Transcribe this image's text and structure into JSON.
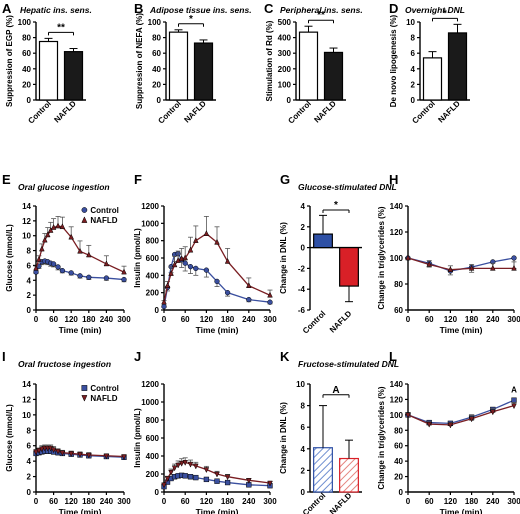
{
  "colors": {
    "axis": "#000000",
    "blue": "#3a4f9f",
    "red": "#7a1e22",
    "bar_red": "#d92027",
    "bar_blue": "#2e50a5",
    "hatch_blue": "#6f8fd0",
    "hatch_red": "#e4847e",
    "grey": "#555555"
  },
  "chart_data": [
    {
      "id": "A",
      "type": "bar",
      "letter": "A",
      "title": "Hepatic ins. sens.",
      "ylabel": "Suppression of EGP (%)",
      "ylim": [
        0,
        100
      ],
      "yticks": [
        0,
        20,
        40,
        60,
        80,
        100
      ],
      "categories": [
        "Control",
        "NAFLD"
      ],
      "values": [
        75,
        62
      ],
      "errors": [
        4,
        4
      ],
      "significance": "**",
      "bar_style": "bw"
    },
    {
      "id": "B",
      "type": "bar",
      "letter": "B",
      "title": "Adipose tissue ins. sens.",
      "ylabel": "Suppression of NEFA (%)",
      "ylim": [
        0,
        100
      ],
      "yticks": [
        0,
        20,
        40,
        60,
        80,
        100
      ],
      "categories": [
        "Control",
        "NAFLD"
      ],
      "values": [
        87,
        73
      ],
      "errors": [
        3,
        4
      ],
      "significance": "*",
      "bar_style": "bw"
    },
    {
      "id": "C",
      "type": "bar",
      "letter": "C",
      "title": "Peripheral ins. sens.",
      "ylabel": "Stimulation of Rd (%)",
      "ylim": [
        0,
        500
      ],
      "yticks": [
        0,
        100,
        200,
        300,
        400,
        500
      ],
      "categories": [
        "Control",
        "NAFLD"
      ],
      "values": [
        435,
        305
      ],
      "errors": [
        38,
        28
      ],
      "significance": "**",
      "bar_style": "bw"
    },
    {
      "id": "D",
      "type": "bar",
      "letter": "D",
      "title": "Overnight DNL",
      "ylabel": "De novo lipogenesis (%)",
      "ylim": [
        0,
        10
      ],
      "yticks": [
        0,
        2,
        4,
        6,
        8,
        10
      ],
      "categories": [
        "Control",
        "NAFLD"
      ],
      "values": [
        5.4,
        8.6
      ],
      "errors": [
        0.8,
        1.1
      ],
      "significance": "*",
      "bar_style": "bw"
    },
    {
      "id": "E",
      "type": "line",
      "letter": "E",
      "title": "Oral glucose ingestion",
      "xlabel": "Time (min)",
      "ylabel": "Glucose (mmol/L)",
      "xlim": [
        0,
        300
      ],
      "xticks": [
        0,
        60,
        120,
        180,
        240,
        300
      ],
      "ylim": [
        0,
        14
      ],
      "yticks": [
        0,
        2,
        4,
        6,
        8,
        10,
        12,
        14
      ],
      "legend": {
        "labels": [
          "Control",
          "NAFLD"
        ]
      },
      "series": [
        {
          "name": "Control",
          "marker": "circle",
          "color": "blue",
          "x": [
            0,
            10,
            20,
            30,
            40,
            50,
            60,
            75,
            90,
            120,
            150,
            180,
            240,
            300
          ],
          "y": [
            5.1,
            5.9,
            6.5,
            6.6,
            6.5,
            6.3,
            6.2,
            5.8,
            5.3,
            5.0,
            4.6,
            4.4,
            4.3,
            4.1
          ],
          "err": [
            0.2,
            0.3,
            0.4,
            0.4,
            0.4,
            0.4,
            0.4,
            0.4,
            0.3,
            0.3,
            0.3,
            0.3,
            0.3,
            0.3
          ]
        },
        {
          "name": "NAFLD",
          "marker": "triangle",
          "color": "red",
          "x": [
            0,
            10,
            20,
            30,
            40,
            50,
            60,
            75,
            90,
            120,
            150,
            180,
            240,
            300
          ],
          "y": [
            5.6,
            6.8,
            8.2,
            9.4,
            10.1,
            10.7,
            11.1,
            11.3,
            11.2,
            9.8,
            7.9,
            7.4,
            6.2,
            5.1
          ],
          "err": [
            0.3,
            0.5,
            0.7,
            0.9,
            1.0,
            1.1,
            1.2,
            1.3,
            1.3,
            1.4,
            1.4,
            1.3,
            1.1,
            0.8
          ]
        }
      ]
    },
    {
      "id": "F",
      "type": "line",
      "letter": "F",
      "xlabel": "Time (min)",
      "ylabel": "Insulin (pmol/L)",
      "xlim": [
        0,
        300
      ],
      "xticks": [
        0,
        60,
        120,
        180,
        240,
        300
      ],
      "ylim": [
        0,
        1200
      ],
      "yticks": [
        0,
        200,
        400,
        600,
        800,
        1000,
        1200
      ],
      "series": [
        {
          "name": "Control",
          "marker": "circle",
          "color": "blue",
          "x": [
            0,
            10,
            20,
            30,
            40,
            50,
            60,
            75,
            90,
            120,
            150,
            180,
            240,
            300
          ],
          "y": [
            40,
            260,
            500,
            640,
            650,
            580,
            540,
            500,
            480,
            460,
            330,
            200,
            120,
            90
          ],
          "err": [
            10,
            40,
            70,
            80,
            90,
            90,
            90,
            80,
            80,
            80,
            60,
            40,
            25,
            20
          ]
        },
        {
          "name": "NAFLD",
          "marker": "triangle",
          "color": "red",
          "x": [
            0,
            10,
            20,
            30,
            40,
            50,
            60,
            75,
            90,
            120,
            150,
            180,
            240,
            300
          ],
          "y": [
            90,
            280,
            420,
            520,
            570,
            590,
            600,
            690,
            800,
            880,
            780,
            560,
            280,
            170
          ],
          "err": [
            20,
            50,
            80,
            100,
            110,
            120,
            130,
            150,
            170,
            200,
            180,
            150,
            90,
            60
          ]
        }
      ]
    },
    {
      "id": "G",
      "type": "bar",
      "letter": "G",
      "title": "Glucose-stimulated DNL",
      "ylabel": "Change in DNL (%)",
      "ylim": [
        -6,
        4
      ],
      "yticks": [
        -6,
        -4,
        -2,
        0,
        2,
        4
      ],
      "categories": [
        "Control",
        "NAFLD"
      ],
      "values": [
        1.3,
        -3.7
      ],
      "errors": [
        1.8,
        1.5
      ],
      "significance": "*",
      "bar_style": "color"
    },
    {
      "id": "H",
      "type": "line",
      "letter": "H",
      "xlabel": "Time (min)",
      "ylabel": "Change in triglycerides (%)",
      "xlim": [
        0,
        300
      ],
      "xticks": [
        0,
        60,
        120,
        180,
        240,
        300
      ],
      "ylim": [
        60,
        140
      ],
      "yticks": [
        60,
        80,
        100,
        120,
        140
      ],
      "series": [
        {
          "name": "Control",
          "marker": "circle",
          "color": "blue",
          "x": [
            0,
            60,
            120,
            180,
            240,
            300
          ],
          "y": [
            100,
            96,
            90,
            93,
            97,
            100
          ],
          "err": [
            0,
            3,
            3,
            4,
            5,
            8
          ]
        },
        {
          "name": "NAFLD",
          "marker": "triangle",
          "color": "red",
          "x": [
            0,
            60,
            120,
            180,
            240,
            300
          ],
          "y": [
            100,
            95,
            91,
            92,
            92,
            92
          ],
          "err": [
            0,
            3,
            3,
            3,
            4,
            5
          ]
        }
      ]
    },
    {
      "id": "I",
      "type": "line",
      "letter": "I",
      "title": "Oral fructose ingestion",
      "xlabel": "Time (min)",
      "ylabel": "Glucose (mmol/L)",
      "xlim": [
        0,
        300
      ],
      "xticks": [
        0,
        60,
        120,
        180,
        240,
        300
      ],
      "ylim": [
        0,
        14
      ],
      "yticks": [
        0,
        2,
        4,
        6,
        8,
        10,
        12,
        14
      ],
      "legend": {
        "labels": [
          "Control",
          "NAFLD"
        ]
      },
      "series": [
        {
          "name": "Control",
          "marker": "square",
          "color": "blue",
          "x": [
            0,
            10,
            20,
            30,
            40,
            50,
            60,
            75,
            90,
            120,
            150,
            180,
            240,
            300
          ],
          "y": [
            5.0,
            5.1,
            5.2,
            5.3,
            5.3,
            5.3,
            5.2,
            5.1,
            5.0,
            4.9,
            4.8,
            4.7,
            4.6,
            4.5
          ],
          "err": [
            0.2,
            0.2,
            0.2,
            0.3,
            0.3,
            0.3,
            0.3,
            0.3,
            0.2,
            0.2,
            0.2,
            0.2,
            0.2,
            0.2
          ]
        },
        {
          "name": "NAFLD",
          "marker": "triangle-down",
          "color": "red",
          "x": [
            0,
            10,
            20,
            30,
            40,
            50,
            60,
            75,
            90,
            120,
            150,
            180,
            240,
            300
          ],
          "y": [
            5.2,
            5.4,
            5.6,
            5.7,
            5.7,
            5.7,
            5.5,
            5.3,
            5.1,
            5.0,
            4.9,
            4.8,
            4.7,
            4.6
          ],
          "err": [
            0.3,
            0.3,
            0.4,
            0.4,
            0.4,
            0.4,
            0.4,
            0.3,
            0.3,
            0.3,
            0.3,
            0.3,
            0.2,
            0.2
          ]
        }
      ]
    },
    {
      "id": "J",
      "type": "line",
      "letter": "J",
      "xlabel": "Time (min)",
      "ylabel": "Insulin (pmol/L)",
      "xlim": [
        0,
        300
      ],
      "xticks": [
        0,
        60,
        120,
        180,
        240,
        300
      ],
      "ylim": [
        0,
        1200
      ],
      "yticks": [
        0,
        200,
        400,
        600,
        800,
        1000,
        1200
      ],
      "series": [
        {
          "name": "Control",
          "marker": "square",
          "color": "blue",
          "x": [
            0,
            10,
            20,
            30,
            40,
            50,
            60,
            75,
            90,
            120,
            150,
            180,
            240,
            300
          ],
          "y": [
            60,
            110,
            150,
            170,
            180,
            185,
            180,
            170,
            160,
            140,
            120,
            105,
            80,
            70
          ],
          "err": [
            10,
            15,
            20,
            25,
            25,
            25,
            25,
            25,
            20,
            20,
            15,
            15,
            10,
            10
          ]
        },
        {
          "name": "NAFLD",
          "marker": "triangle-down",
          "color": "red",
          "x": [
            0,
            10,
            20,
            30,
            40,
            50,
            60,
            75,
            90,
            120,
            150,
            180,
            240,
            300
          ],
          "y": [
            80,
            150,
            220,
            270,
            300,
            320,
            330,
            310,
            290,
            250,
            200,
            170,
            130,
            100
          ],
          "err": [
            15,
            25,
            35,
            40,
            45,
            50,
            50,
            45,
            40,
            35,
            30,
            25,
            20,
            15
          ]
        }
      ]
    },
    {
      "id": "K",
      "type": "bar",
      "letter": "K",
      "title": "Fructose-stimulated DNL",
      "ylabel": "Change in DNL (%)",
      "ylim": [
        0,
        10
      ],
      "yticks": [
        0,
        2,
        4,
        6,
        8,
        10
      ],
      "categories": [
        "Control",
        "NAFLD"
      ],
      "values": [
        4.1,
        3.1
      ],
      "errors": [
        3.9,
        1.7
      ],
      "significance": "A",
      "bar_style": "hatched"
    },
    {
      "id": "L",
      "type": "line",
      "letter": "L",
      "xlabel": "Time (min)",
      "ylabel": "Change in triglycerides (%)",
      "xlim": [
        0,
        300
      ],
      "xticks": [
        0,
        60,
        120,
        180,
        240,
        300
      ],
      "ylim": [
        0,
        140
      ],
      "yticks": [
        0,
        20,
        40,
        60,
        80,
        100,
        120,
        140
      ],
      "annotation": "A",
      "series": [
        {
          "name": "Control",
          "marker": "square",
          "color": "blue",
          "x": [
            0,
            60,
            120,
            180,
            240,
            300
          ],
          "y": [
            100,
            90,
            89,
            97,
            107,
            119
          ],
          "err": [
            0,
            3,
            3,
            4,
            4,
            5
          ]
        },
        {
          "name": "NAFLD",
          "marker": "triangle-down",
          "color": "red",
          "x": [
            0,
            60,
            120,
            180,
            240,
            300
          ],
          "y": [
            100,
            88,
            87,
            95,
            104,
            112
          ],
          "err": [
            0,
            3,
            3,
            4,
            4,
            4
          ]
        }
      ]
    }
  ]
}
